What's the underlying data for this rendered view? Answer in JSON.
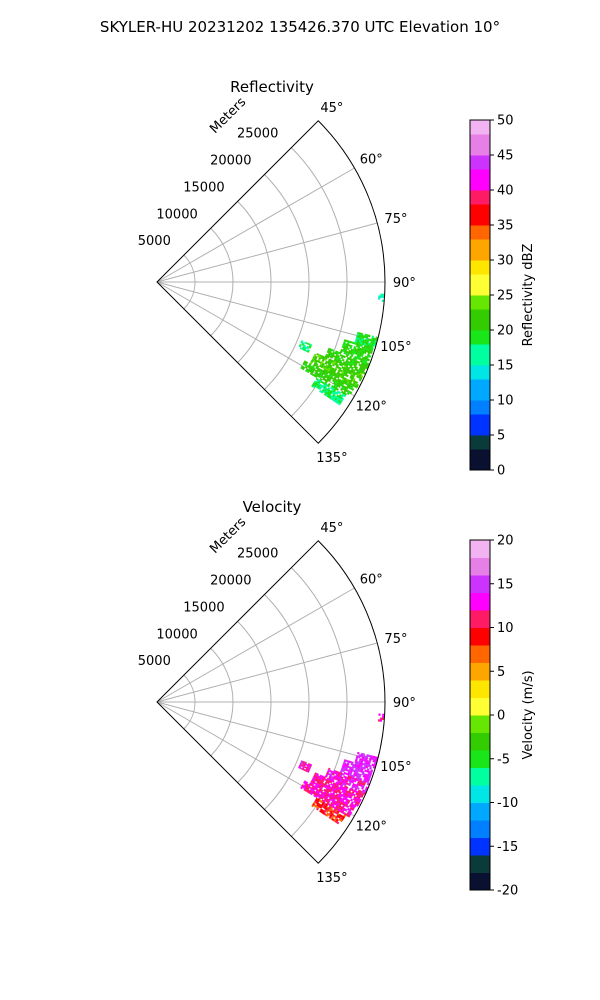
{
  "figure_title": "SKYLER-HU  20231202  135426.370 UTC Elevation 10°",
  "colors": {
    "grid": "#b0b0b0",
    "outline": "#000000",
    "echo_green": "#3ddc1a",
    "echo_green_light": "#7fe61a",
    "echo_cyan": "#19e6a0",
    "echo_magenta": "#c033f0",
    "echo_pink": "#e629e6",
    "echo_red": "#e6001a"
  },
  "chart_data": [
    {
      "type": "heatmap",
      "projection": "polar-sector",
      "title": "Reflectivity",
      "radial_label": "Meters",
      "radial_ticks": [
        5000,
        10000,
        15000,
        20000,
        25000
      ],
      "angular_ticks": [
        "45°",
        "60°",
        "75°",
        "90°",
        "105°",
        "120°",
        "135°"
      ],
      "angular_range_deg": [
        45,
        135
      ],
      "radial_range_m": [
        0,
        30000
      ],
      "grid": true,
      "colorbar": {
        "label": "Reflectivity dBZ",
        "range": [
          0,
          50
        ],
        "ticks": [
          0,
          5,
          10,
          15,
          20,
          25,
          30,
          35,
          40,
          45,
          50
        ],
        "colormap": "pyart_NWSRef",
        "stops": [
          [
            0,
            "#0a1030"
          ],
          [
            3,
            "#0b3a3a"
          ],
          [
            5,
            "#0033ff"
          ],
          [
            8,
            "#0080ff"
          ],
          [
            10,
            "#00a8ff"
          ],
          [
            13,
            "#00e6e6"
          ],
          [
            15,
            "#00ffa0"
          ],
          [
            18,
            "#19e619"
          ],
          [
            20,
            "#33cc00"
          ],
          [
            23,
            "#66e600"
          ],
          [
            25,
            "#ffff33"
          ],
          [
            28,
            "#ffe600"
          ],
          [
            30,
            "#ffa500"
          ],
          [
            33,
            "#ff6600"
          ],
          [
            35,
            "#ff0000"
          ],
          [
            38,
            "#ff1a66"
          ],
          [
            40,
            "#ff00ff"
          ],
          [
            43,
            "#cc33ff"
          ],
          [
            45,
            "#e680e6"
          ],
          [
            48,
            "#f2b3f2"
          ],
          [
            50,
            "#fff0ff"
          ]
        ]
      },
      "echoes": [
        {
          "azimuth_deg": [
            104,
            107
          ],
          "range_m": [
            27200,
            29800
          ],
          "value": 19
        },
        {
          "azimuth_deg": [
            107,
            111
          ],
          "range_m": [
            25800,
            29800
          ],
          "value": 20
        },
        {
          "azimuth_deg": [
            111,
            114
          ],
          "range_m": [
            24200,
            29800
          ],
          "value": 21
        },
        {
          "azimuth_deg": [
            114,
            118
          ],
          "range_m": [
            22800,
            29600
          ],
          "value": 22
        },
        {
          "azimuth_deg": [
            118,
            121
          ],
          "range_m": [
            22000,
            29400
          ],
          "value": 21
        },
        {
          "azimuth_deg": [
            121,
            124
          ],
          "range_m": [
            24500,
            29000
          ],
          "value": 18
        },
        {
          "azimuth_deg": [
            112,
            115
          ],
          "range_m": [
            20500,
            21800
          ],
          "value": 17
        },
        {
          "azimuth_deg": [
            93,
            95
          ],
          "range_m": [
            29200,
            29800
          ],
          "value": 16
        }
      ]
    },
    {
      "type": "heatmap",
      "projection": "polar-sector",
      "title": "Velocity",
      "radial_label": "Meters",
      "radial_ticks": [
        5000,
        10000,
        15000,
        20000,
        25000
      ],
      "angular_ticks": [
        "45°",
        "60°",
        "75°",
        "90°",
        "105°",
        "120°",
        "135°"
      ],
      "angular_range_deg": [
        45,
        135
      ],
      "radial_range_m": [
        0,
        30000
      ],
      "grid": true,
      "colorbar": {
        "label": "Velocity (m/s)",
        "range": [
          -20,
          20
        ],
        "ticks": [
          -20,
          -15,
          -10,
          -5,
          0,
          5,
          10,
          15,
          20
        ],
        "colormap": "pyart_BuDRd18",
        "stops": [
          [
            -20,
            "#0a1030"
          ],
          [
            -18,
            "#0b3a3a"
          ],
          [
            -16,
            "#0033ff"
          ],
          [
            -14,
            "#0080ff"
          ],
          [
            -12,
            "#00a8ff"
          ],
          [
            -10,
            "#00e6e6"
          ],
          [
            -8,
            "#00ffa0"
          ],
          [
            -6,
            "#19e619"
          ],
          [
            -4,
            "#33cc00"
          ],
          [
            -2,
            "#66e600"
          ],
          [
            0,
            "#ffff33"
          ],
          [
            2,
            "#ffe600"
          ],
          [
            4,
            "#ffa500"
          ],
          [
            6,
            "#ff6600"
          ],
          [
            8,
            "#ff0000"
          ],
          [
            10,
            "#ff1a66"
          ],
          [
            12,
            "#ff00ff"
          ],
          [
            14,
            "#cc33ff"
          ],
          [
            16,
            "#e680e6"
          ],
          [
            18,
            "#f2b3f2"
          ],
          [
            20,
            "#fff0ff"
          ]
        ]
      },
      "echoes": [
        {
          "azimuth_deg": [
            104,
            107
          ],
          "range_m": [
            27200,
            29800
          ],
          "value": 14
        },
        {
          "azimuth_deg": [
            107,
            111
          ],
          "range_m": [
            25800,
            29800
          ],
          "value": 14
        },
        {
          "azimuth_deg": [
            111,
            114
          ],
          "range_m": [
            24200,
            29800
          ],
          "value": 13
        },
        {
          "azimuth_deg": [
            114,
            118
          ],
          "range_m": [
            22800,
            29600
          ],
          "value": 12
        },
        {
          "azimuth_deg": [
            118,
            121
          ],
          "range_m": [
            22000,
            29400
          ],
          "value": 12
        },
        {
          "azimuth_deg": [
            121,
            124
          ],
          "range_m": [
            24500,
            29000
          ],
          "value": 9
        },
        {
          "azimuth_deg": [
            112,
            115
          ],
          "range_m": [
            20500,
            21800
          ],
          "value": 13
        },
        {
          "azimuth_deg": [
            93,
            95
          ],
          "range_m": [
            29200,
            29800
          ],
          "value": 12
        }
      ]
    }
  ]
}
